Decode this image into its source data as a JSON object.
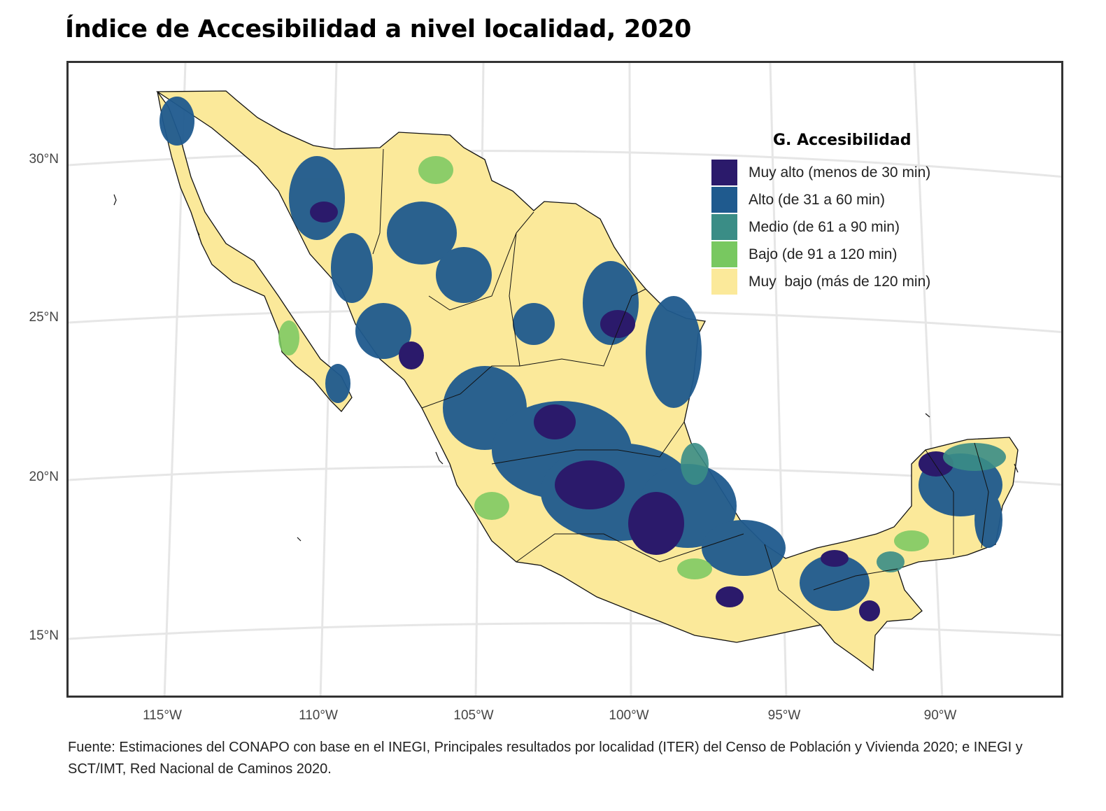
{
  "title": "Índice de Accesibilidad a nivel localidad, 2020",
  "map": {
    "y_axis_ticks": [
      "30°N",
      "25°N",
      "20°N",
      "15°N"
    ],
    "x_axis_ticks": [
      "115°W",
      "110°W",
      "105°W",
      "100°W",
      "95°W",
      "90°W"
    ],
    "grid": true
  },
  "legend": {
    "title": "G. Accesibilidad",
    "items": [
      {
        "label": "Muy alto (menos de 30 min)",
        "color": "#2b1a6b"
      },
      {
        "label": "Alto (de 31 a 60 min)",
        "color": "#1f5a8e"
      },
      {
        "label": "Medio (de 61 a 90 min)",
        "color": "#3a8d86"
      },
      {
        "label": "Bajo (de 91 a 120 min)",
        "color": "#78c860"
      },
      {
        "label": "Muy  bajo (más de 120 min)",
        "color": "#fbe99a"
      }
    ]
  },
  "source": "Fuente: Estimaciones del CONAPO con base en el INEGI, Principales resultados por localidad (ITER) del Censo de Población y Vivienda 2020; e INEGI y SCT/IMT, Red Nacional de Caminos 2020."
}
